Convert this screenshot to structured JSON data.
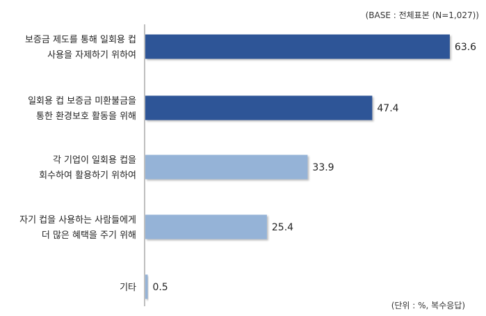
{
  "header_note": "(BASE : 전체표본  (N=1,027))",
  "footer_note": "(단위 : %, 복수응답)",
  "colors": {
    "dark_bar": "#2f5597",
    "light_bar": "#95b3d7",
    "axis": "#7f7f7f"
  },
  "chart_data": {
    "type": "bar",
    "orientation": "horizontal",
    "categories": [
      [
        "보증금 제도를 통해 일회용 컵",
        "사용을 자제하기 위하여"
      ],
      [
        "일회용 컵 보증금 미환불금을",
        "통한 환경보호 활동을 위해"
      ],
      [
        "각 기업이 일회용 컵을",
        "회수하여 활용하기 위하여"
      ],
      [
        "자기 컵을 사용하는 사람들에게",
        "더 많은 혜택을 주기 위해"
      ],
      [
        "기타"
      ]
    ],
    "values": [
      63.6,
      47.4,
      33.9,
      25.4,
      0.5
    ],
    "value_labels": [
      "63.6",
      "47.4",
      "33.9",
      "25.4",
      "0.5"
    ],
    "bar_tone": [
      "dark",
      "dark",
      "light",
      "light",
      "light"
    ],
    "xlim": [
      0,
      70
    ],
    "grid": false,
    "legend": "none"
  }
}
